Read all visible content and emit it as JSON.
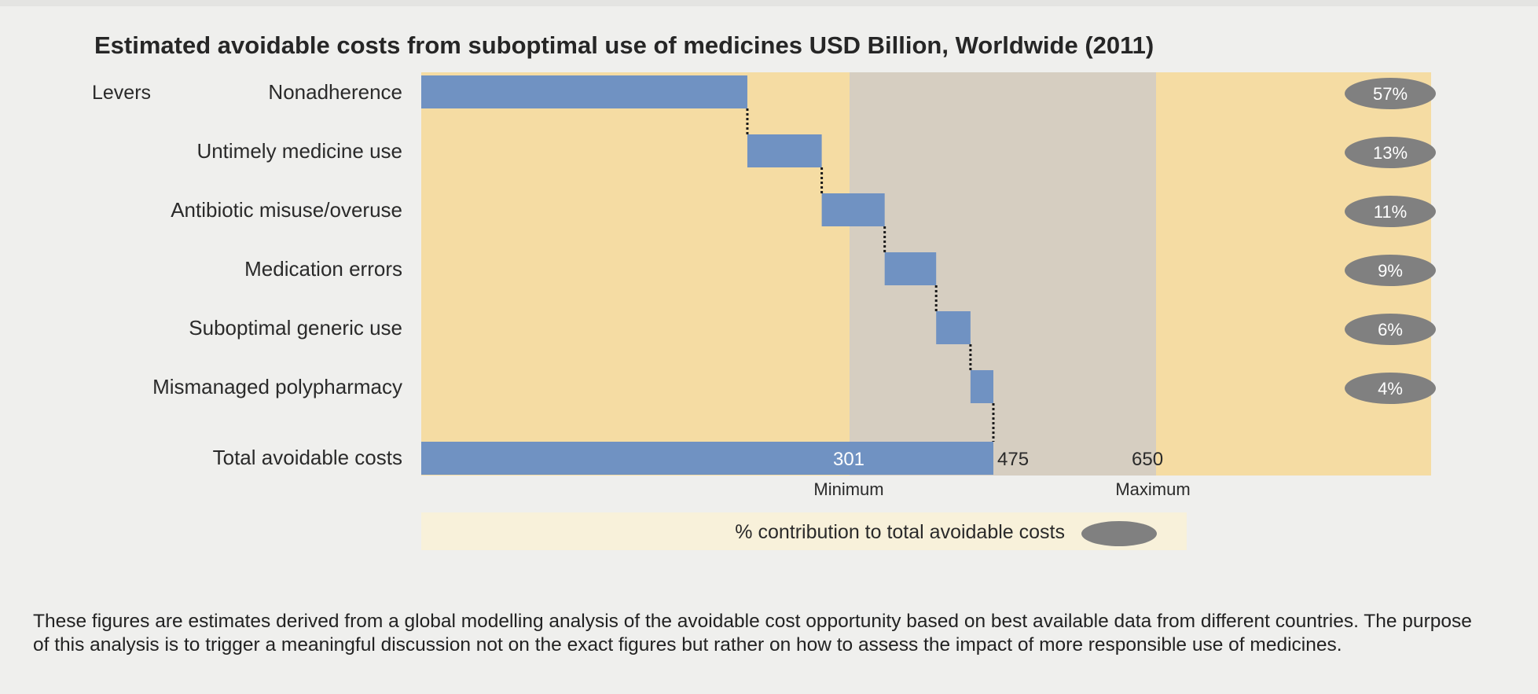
{
  "chart_data": {
    "type": "waterfall-bar",
    "title": "Estimated avoidable costs from suboptimal use of medicines USD Billion, Worldwide (2011)",
    "category_header": "Levers",
    "categories": [
      "Nonadherence",
      "Untimely medicine use",
      "Antibiotic misuse/overuse",
      "Medication errors",
      "Suboptimal generic use",
      "Mismanaged polypharmacy"
    ],
    "contributions_pct": [
      57,
      13,
      11,
      9,
      6,
      4
    ],
    "contribution_labels": [
      "57%",
      "13%",
      "11%",
      "9%",
      "6%",
      "4%"
    ],
    "total": {
      "label": "Total avoidable costs",
      "value": 475,
      "value_label": "475",
      "minimum": 301,
      "minimum_label": "301",
      "maximum": 650,
      "maximum_label": "650"
    },
    "range_labels": {
      "minimum": "Minimum",
      "maximum": "Maximum"
    },
    "legend": {
      "text": "% contribution to total avoidable costs",
      "placement": "bottom-center"
    },
    "colors": {
      "bar": "#7092c2",
      "outer_band": "#f5dca3",
      "range_band": "#d6cec1",
      "oval": "#808080",
      "legend_bg": "#f8f1da"
    }
  },
  "note": "These figures are estimates derived from a global modelling analysis of the avoidable cost opportunity based on best available data from different countries. The purpose of this analysis is to trigger a meaningful discussion not on the exact figures but rather on how to assess the impact of more responsible use of medicines."
}
